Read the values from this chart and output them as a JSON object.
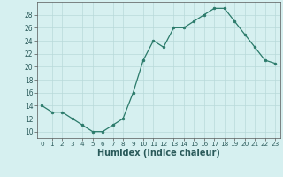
{
  "x": [
    0,
    1,
    2,
    3,
    4,
    5,
    6,
    7,
    8,
    9,
    10,
    11,
    12,
    13,
    14,
    15,
    16,
    17,
    18,
    19,
    20,
    21,
    22,
    23
  ],
  "y": [
    14,
    13,
    13,
    12,
    11,
    10,
    10,
    11,
    12,
    16,
    21,
    24,
    23,
    26,
    26,
    27,
    28,
    29,
    29,
    27,
    25,
    23,
    21,
    20.5
  ],
  "line_color": "#2a7a6a",
  "marker_color": "#2a7a6a",
  "bg_color": "#d6f0f0",
  "grid_color": "#b8dada",
  "xlabel": "Humidex (Indice chaleur)",
  "ylim": [
    9,
    30
  ],
  "xlim": [
    -0.5,
    23.5
  ],
  "yticks": [
    10,
    12,
    14,
    16,
    18,
    20,
    22,
    24,
    26,
    28
  ],
  "xticks": [
    0,
    1,
    2,
    3,
    4,
    5,
    6,
    7,
    8,
    9,
    10,
    11,
    12,
    13,
    14,
    15,
    16,
    17,
    18,
    19,
    20,
    21,
    22,
    23
  ],
  "tick_fontsize": 6,
  "xlabel_fontsize": 7
}
